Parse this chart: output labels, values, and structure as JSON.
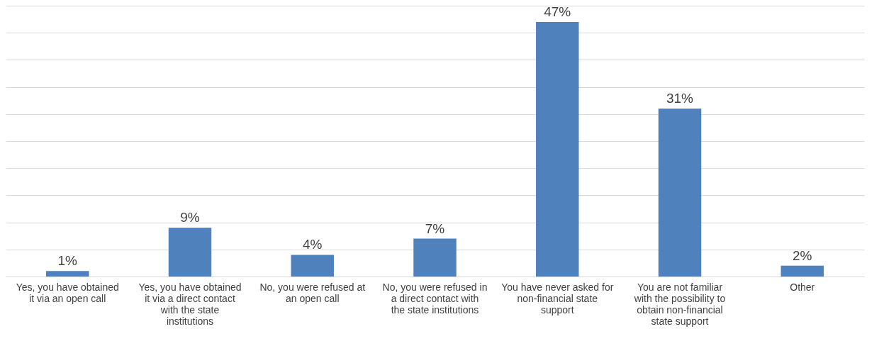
{
  "chart_data": {
    "type": "bar",
    "categories": [
      "Yes, you have obtained it via an open call",
      "Yes, you have obtained it via a direct contact with the state institutions",
      "No, you were refused at an open call",
      "No, you were refused in a direct contact with the state institutions",
      "You have never asked for non-financial state support",
      "You are not familiar with the possibility to obtain non-financial state support",
      "Other"
    ],
    "values": [
      1,
      9,
      4,
      7,
      47,
      31,
      2
    ],
    "value_labels": [
      "1%",
      "9%",
      "4%",
      "7%",
      "47%",
      "31%",
      "2%"
    ],
    "color": "#4f81bd",
    "grid": "y",
    "tick_labels": "x"
  }
}
